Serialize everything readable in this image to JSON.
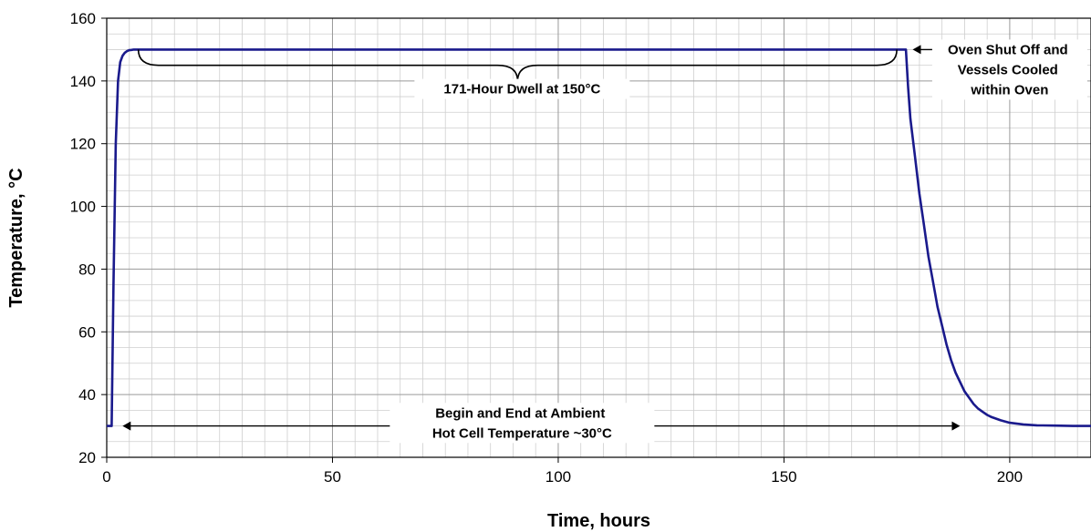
{
  "chart_data": {
    "type": "line",
    "xlabel": "Time, hours",
    "ylabel": "Temperature, °C",
    "xlim": [
      0,
      218
    ],
    "ylim": [
      20,
      160
    ],
    "x_ticks": [
      0,
      50,
      100,
      150,
      200
    ],
    "y_ticks": [
      20,
      40,
      60,
      80,
      100,
      120,
      140,
      160
    ],
    "x_minor_step": 5,
    "y_minor_step": 5,
    "grid": true,
    "line_color": "#1a1a8c",
    "series": [
      {
        "x": [
          0,
          0.5,
          1,
          1.1,
          1.5,
          2,
          2.5,
          3,
          3.5,
          4,
          4.5,
          5,
          5.5,
          6,
          7,
          8,
          10,
          20,
          50,
          100,
          150,
          176,
          177,
          177.5,
          178,
          179,
          180,
          181,
          182,
          183,
          184,
          185,
          186,
          187,
          188,
          189,
          190,
          191,
          192,
          193,
          194,
          195,
          196,
          198,
          200,
          203,
          206,
          210,
          214,
          218
        ],
        "y": [
          30,
          30,
          30,
          30,
          75,
          120,
          140,
          146,
          148,
          149,
          149.5,
          149.8,
          149.9,
          150,
          150,
          150,
          150,
          150,
          150,
          150,
          150,
          150,
          150,
          138,
          128,
          116,
          104,
          94,
          84,
          76,
          68,
          62,
          56,
          51,
          47,
          44,
          41,
          39,
          37,
          35.5,
          34.5,
          33.5,
          32.8,
          31.8,
          31,
          30.5,
          30.2,
          30.1,
          30,
          30
        ]
      }
    ],
    "annotations": {
      "dwell": "171-Hour Dwell at 150°C",
      "shutoff": [
        "Oven Shut Off and",
        "Vessels Cooled",
        "within Oven"
      ],
      "ambient": [
        "Begin and End at Ambient",
        "Hot Cell Temperature ~30°C"
      ]
    },
    "annotation_positions": {
      "dwell_brace": {
        "x1": 7,
        "x2": 175,
        "y_top": 150,
        "y_bottom": 145,
        "y_tip": 140
      },
      "dwell_label": {
        "x": 92,
        "y": 136
      },
      "shutoff_arrow": {
        "x_from": 183,
        "x_to": 178.5,
        "y": 150
      },
      "shutoff_label": {
        "x": 200,
        "y": 150
      },
      "ambient_arrow": {
        "x1": 3.5,
        "x2": 189,
        "y": 30
      },
      "ambient_label": {
        "x": 92,
        "y": 32.7
      }
    }
  }
}
